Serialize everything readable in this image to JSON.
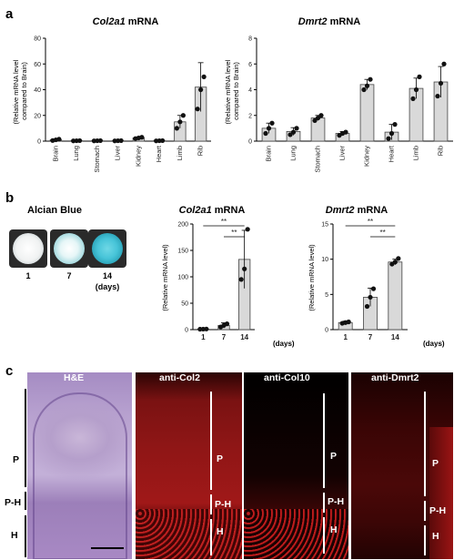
{
  "panel_labels": {
    "a": "a",
    "b": "b",
    "c": "c"
  },
  "panel_a": {
    "col2a1": {
      "gene": "Col2a1",
      "suffix": " mRNA"
    },
    "dmrt2": {
      "gene": "Dmrt2",
      "suffix": " mRNA"
    },
    "ylabel_line1": "(Relative mRNA level",
    "ylabel_line2": "compared to Brain)"
  },
  "panel_b": {
    "alcian_title": "Alcian Blue",
    "dish_labels": [
      "1",
      "7",
      "14"
    ],
    "dish_unit": "(days)",
    "col2a1": {
      "gene": "Col2a1",
      "suffix": " mRNA"
    },
    "dmrt2": {
      "gene": "Dmrt2",
      "suffix": " mRNA"
    },
    "ylabel": "(Relative mRNA level)",
    "days_label": "(days)",
    "sig": "**"
  },
  "panel_c": {
    "titles": [
      "H&E",
      "anti-Col2",
      "anti-Col10",
      "anti-Dmrt2"
    ],
    "zones": {
      "p": "P",
      "ph": "P-H",
      "h": "H"
    }
  },
  "chart_data": [
    {
      "type": "bar",
      "title": "Col2a1 mRNA",
      "ylabel": "(Relative mRNA level compared to Brain)",
      "categories": [
        "Brain",
        "Lung",
        "Stomach",
        "Liver",
        "Kidney",
        "Heart",
        "Limb",
        "Rib"
      ],
      "values": [
        1,
        0.3,
        0.3,
        0.3,
        2.5,
        0.3,
        15,
        42
      ],
      "errors": [
        0.3,
        0.1,
        0.1,
        0.1,
        0.6,
        0.1,
        5,
        19
      ],
      "points": [
        [
          0.5,
          1,
          1.5
        ],
        [
          0.2,
          0.3,
          0.4
        ],
        [
          0.2,
          0.3,
          0.4
        ],
        [
          0.2,
          0.3,
          0.4
        ],
        [
          2,
          2.5,
          3
        ],
        [
          0.2,
          0.3,
          0.4
        ],
        [
          10,
          15,
          20
        ],
        [
          25,
          40,
          50
        ]
      ],
      "yticks": [
        0,
        20,
        40,
        60,
        80
      ],
      "ylim": [
        0,
        80
      ]
    },
    {
      "type": "bar",
      "title": "Dmrt2 mRNA",
      "ylabel": "(Relative mRNA level compared to Brain)",
      "categories": [
        "Brain",
        "Lung",
        "Stomach",
        "Liver",
        "Kidney",
        "Heart",
        "Limb",
        "Rib"
      ],
      "values": [
        1,
        0.75,
        1.8,
        0.6,
        4.4,
        0.7,
        4.1,
        4.6
      ],
      "errors": [
        0.4,
        0.3,
        0.2,
        0.15,
        0.4,
        0.6,
        0.8,
        1.2
      ],
      "points": [
        [
          0.6,
          1,
          1.4
        ],
        [
          0.5,
          0.7,
          1.0
        ],
        [
          1.6,
          1.8,
          2.0
        ],
        [
          0.45,
          0.6,
          0.7
        ],
        [
          4.0,
          4.3,
          4.8
        ],
        [
          0.2,
          0.6,
          1.3
        ],
        [
          3.3,
          4.0,
          5.0
        ],
        [
          3.5,
          4.5,
          6.0
        ]
      ],
      "yticks": [
        0,
        2,
        4,
        6,
        8
      ],
      "ylim": [
        0,
        8
      ]
    },
    {
      "type": "bar",
      "title": "Col2a1 mRNA",
      "ylabel": "(Relative mRNA level)",
      "xlabel": "(days)",
      "categories": [
        "1",
        "7",
        "14"
      ],
      "values": [
        1,
        8,
        133
      ],
      "errors": [
        0.5,
        5,
        55
      ],
      "points": [
        [
          0.8,
          1,
          1.2
        ],
        [
          5,
          8,
          11
        ],
        [
          95,
          115,
          190
        ]
      ],
      "yticks": [
        0,
        50,
        100,
        150,
        200
      ],
      "ylim": [
        0,
        200
      ],
      "significance": [
        "**",
        "**"
      ]
    },
    {
      "type": "bar",
      "title": "Dmrt2 mRNA",
      "ylabel": "(Relative mRNA level)",
      "xlabel": "(days)",
      "categories": [
        "1",
        "7",
        "14"
      ],
      "values": [
        1,
        4.6,
        9.6
      ],
      "errors": [
        0.2,
        1.3,
        0.4
      ],
      "points": [
        [
          0.9,
          1.0,
          1.1
        ],
        [
          3.3,
          4.6,
          5.8
        ],
        [
          9.3,
          9.6,
          10.1
        ]
      ],
      "yticks": [
        0,
        5,
        10,
        15
      ],
      "ylim": [
        0,
        15
      ],
      "significance": [
        "**",
        "**"
      ]
    }
  ]
}
